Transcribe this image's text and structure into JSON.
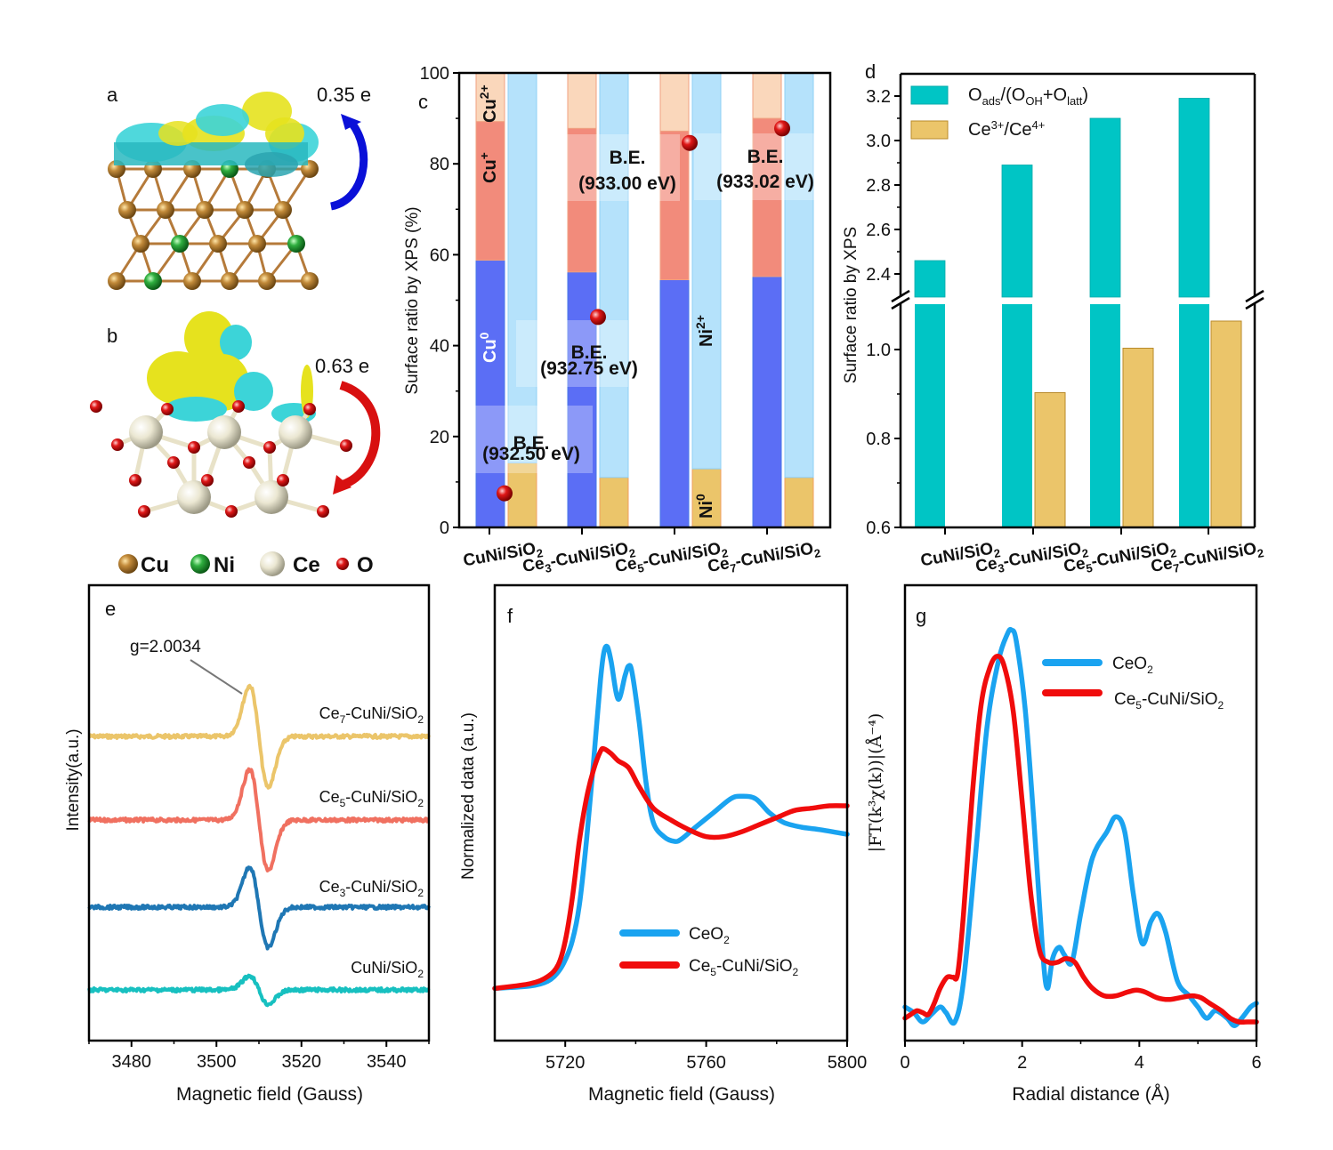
{
  "panels": {
    "a": {
      "label": "a",
      "charge": "0.35 e",
      "arrow_color": "#0a10d8"
    },
    "b": {
      "label": "b",
      "charge": "0.63 e",
      "arrow_color": "#d81010"
    },
    "legend_atoms": [
      {
        "name": "Cu",
        "color": "#b07a2a"
      },
      {
        "name": "Ni",
        "color": "#2aa23a"
      },
      {
        "name": "Ce",
        "color": "#e8e4d0"
      },
      {
        "name": "O",
        "color": "#d81818"
      }
    ]
  },
  "chart_data": [
    {
      "id": "c",
      "panel_label": "c",
      "type": "bar",
      "stacked": true,
      "ylabel": "Surface ratio by XPS (%)",
      "ylim": [
        0,
        100
      ],
      "yticks": [
        "0",
        "20",
        "40",
        "60",
        "80",
        "100"
      ],
      "categories": [
        "CuNi/SiO2",
        "Ce3-CuNi/SiO2",
        "Ce5-CuNi/SiO2",
        "Ce7-CuNi/SiO2"
      ],
      "category_labels": [
        {
          "main": "CuNi/SiO",
          "sub": "2",
          "prefix": "",
          "prefix_sub": ""
        },
        {
          "main": "-CuNi/SiO",
          "sub": "2",
          "prefix": "Ce",
          "prefix_sub": "3"
        },
        {
          "main": "-CuNi/SiO",
          "sub": "2",
          "prefix": "Ce",
          "prefix_sub": "5"
        },
        {
          "main": "-CuNi/SiO",
          "sub": "2",
          "prefix": "Ce",
          "prefix_sub": "7"
        }
      ],
      "cu_series": [
        {
          "name": "Cu0",
          "color": "#5b6ef5",
          "values": [
            58.8,
            56.2,
            54.5,
            55.2
          ]
        },
        {
          "name": "Cu+",
          "color": "#f28b7b",
          "values": [
            30.5,
            31.6,
            32.7,
            34.8
          ]
        },
        {
          "name": "Cu2+",
          "color": "#fad7bb",
          "values": [
            10.7,
            12.2,
            12.8,
            10.0
          ]
        }
      ],
      "ni_series": [
        {
          "name": "Ni0",
          "color": "#ebc56a",
          "values": [
            14.2,
            11.0,
            12.9,
            11.0
          ]
        },
        {
          "name": "Ni2+",
          "color": "#b5e2fb",
          "values": [
            85.8,
            89.0,
            87.1,
            89.0
          ]
        }
      ],
      "be_points": [
        7.5,
        46.3,
        84.6,
        87.8
      ],
      "be_labels": [
        "B.E.",
        "(932.50 eV)",
        "B.E.",
        "(932.75 eV)",
        "B.E.",
        "(933.00 eV)",
        "B.E.",
        "(933.02 eV)"
      ],
      "series_labels": {
        "cu2": "Cu",
        "cu2_sup": "2+",
        "cu1": "Cu",
        "cu1_sup": "+",
        "cu0": "Cu",
        "cu0_sup": "0",
        "ni2": "Ni",
        "ni2_sup": "2+",
        "ni0": "Ni",
        "ni0_sup": "0"
      }
    },
    {
      "id": "d",
      "panel_label": "d",
      "type": "bar",
      "broken_axis": true,
      "ylabel": "Surface ratio by XPS",
      "ylim_lower": [
        0.6,
        1.1
      ],
      "ylim_upper": [
        2.33,
        3.3
      ],
      "yticks_lower": [
        "0.6",
        "0.8",
        "1.0"
      ],
      "yticks_upper": [
        "2.4",
        "2.6",
        "2.8",
        "3.0",
        "3.2"
      ],
      "categories": [
        "CuNi/SiO2",
        "Ce3-CuNi/SiO2",
        "Ce5-CuNi/SiO2",
        "Ce7-CuNi/SiO2"
      ],
      "series": [
        {
          "name": "Oads/(OOH+Olatt)",
          "color": "#00c5c5",
          "values": [
            2.46,
            2.89,
            3.1,
            3.19
          ]
        },
        {
          "name": "Ce3+/Ce4+",
          "color": "#ebc56a",
          "values": [
            null,
            0.903,
            1.003,
            1.064
          ]
        }
      ],
      "legend": [
        {
          "main": "O",
          "parts": [
            [
              "sub",
              "ads"
            ],
            [
              "n",
              "/(O"
            ],
            [
              "sub",
              "OH"
            ],
            [
              "n",
              "+O"
            ],
            [
              "sub",
              "latt"
            ],
            [
              "n",
              ")"
            ]
          ]
        },
        {
          "main": "Ce",
          "parts": [
            [
              "sup",
              "3+"
            ],
            [
              "n",
              "/Ce"
            ],
            [
              "sup",
              "4+"
            ]
          ]
        }
      ],
      "legend_position": "top-left"
    },
    {
      "id": "e",
      "panel_label": "e",
      "type": "line",
      "xlabel": "Magnetic field (Gauss)",
      "ylabel": "Intensity(a.u.)",
      "xlim": [
        3470,
        3550
      ],
      "xticks": [
        "3480",
        "3500",
        "3520",
        "3540"
      ],
      "annotation": "g=2.0034",
      "series": [
        {
          "name": "Ce7-CuNi/SiO2",
          "label": "Ce",
          "sub": "7",
          "rest": "-CuNi/SiO",
          "sub2": "2",
          "color": "#ebc56a",
          "offset": 3.0,
          "amp": 1.25
        },
        {
          "name": "Ce5-CuNi/SiO2",
          "label": "Ce",
          "sub": "5",
          "rest": "-CuNi/SiO",
          "sub2": "2",
          "color": "#f07060",
          "offset": 2.0,
          "amp": 1.25
        },
        {
          "name": "Ce3-CuNi/SiO2",
          "label": "Ce",
          "sub": "3",
          "rest": "-CuNi/SiO",
          "sub2": "2",
          "color": "#1f77b4",
          "offset": 1.0,
          "amp": 1.0
        },
        {
          "name": "CuNi/SiO2",
          "label": "",
          "sub": "",
          "rest": "CuNi/SiO",
          "sub2": "2",
          "color": "#17c0c0",
          "offset": 0.0,
          "amp": 0.35
        }
      ]
    },
    {
      "id": "f",
      "panel_label": "f",
      "type": "line",
      "xlabel": "Magnetic field (Gauss)",
      "ylabel": "Normalized data (a.u.)",
      "xlim": [
        5700,
        5800
      ],
      "xticks": [
        "5720",
        "5760",
        "5800"
      ],
      "legend_position": "bottom-right",
      "series": [
        {
          "name": "CeO2",
          "label": "CeO",
          "sub": "2",
          "color": "#1aa3f0",
          "x": [
            5700,
            5710,
            5715,
            5718,
            5720,
            5722,
            5724,
            5726,
            5728,
            5730,
            5731,
            5732,
            5733,
            5735,
            5737,
            5738,
            5739,
            5741,
            5743,
            5745,
            5748,
            5751,
            5753,
            5757,
            5762,
            5767,
            5770,
            5774,
            5778,
            5782,
            5787,
            5792,
            5800
          ],
          "y": [
            0.0,
            0.01,
            0.03,
            0.07,
            0.12,
            0.2,
            0.35,
            0.62,
            0.95,
            1.3,
            1.42,
            1.44,
            1.38,
            1.22,
            1.32,
            1.36,
            1.33,
            1.12,
            0.86,
            0.7,
            0.64,
            0.62,
            0.63,
            0.68,
            0.74,
            0.8,
            0.81,
            0.8,
            0.74,
            0.7,
            0.68,
            0.67,
            0.65
          ]
        },
        {
          "name": "Ce5-CuNi/SiO2",
          "label": "Ce",
          "sub": "5",
          "rest": "-CuNi/SiO",
          "sub2": "2",
          "color": "#f00c0c",
          "x": [
            5700,
            5710,
            5715,
            5718,
            5720,
            5722,
            5724,
            5726,
            5728,
            5730,
            5731,
            5733,
            5735,
            5738,
            5741,
            5745,
            5750,
            5755,
            5760,
            5765,
            5770,
            5775,
            5780,
            5785,
            5790,
            5795,
            5800
          ],
          "y": [
            0.0,
            0.02,
            0.05,
            0.1,
            0.2,
            0.38,
            0.62,
            0.8,
            0.92,
            1.0,
            1.01,
            0.99,
            0.96,
            0.93,
            0.85,
            0.76,
            0.71,
            0.67,
            0.64,
            0.64,
            0.66,
            0.69,
            0.72,
            0.75,
            0.76,
            0.77,
            0.77
          ]
        }
      ]
    },
    {
      "id": "g",
      "panel_label": "g",
      "type": "line",
      "xlabel": "Radial distance (Å)",
      "ylabel": "|FT(k³χ(k))|(Å⁻⁴)",
      "xlim": [
        0,
        6
      ],
      "xticks": [
        "0",
        "2",
        "4",
        "6"
      ],
      "legend_position": "top-right",
      "series": [
        {
          "name": "CeO2",
          "label": "CeO",
          "sub": "2",
          "color": "#1aa3f0",
          "x": [
            0,
            0.15,
            0.3,
            0.45,
            0.6,
            0.7,
            0.85,
            1.0,
            1.2,
            1.4,
            1.6,
            1.75,
            1.82,
            1.9,
            2.05,
            2.2,
            2.35,
            2.43,
            2.52,
            2.63,
            2.72,
            2.85,
            3.0,
            3.2,
            3.45,
            3.6,
            3.75,
            3.9,
            4.05,
            4.2,
            4.32,
            4.45,
            4.65,
            4.85,
            5.0,
            5.15,
            5.3,
            5.5,
            5.62,
            5.75,
            5.9,
            6.0
          ],
          "y": [
            0.05,
            0.035,
            0.01,
            0.03,
            0.05,
            0.035,
            0.01,
            0.12,
            0.45,
            0.8,
            0.98,
            1.05,
            1.06,
            1.03,
            0.85,
            0.55,
            0.2,
            0.1,
            0.18,
            0.21,
            0.19,
            0.17,
            0.3,
            0.45,
            0.52,
            0.56,
            0.52,
            0.35,
            0.22,
            0.28,
            0.3,
            0.25,
            0.12,
            0.08,
            0.05,
            0.02,
            0.04,
            0.02,
            0.0,
            0.02,
            0.05,
            0.06
          ]
        },
        {
          "name": "Ce5-CuNi/SiO2",
          "label": "Ce",
          "sub": "5",
          "rest": "-CuNi/SiO",
          "sub2": "2",
          "color": "#f00c0c",
          "x": [
            0,
            0.1,
            0.2,
            0.3,
            0.4,
            0.5,
            0.6,
            0.72,
            0.82,
            0.9,
            1.0,
            1.15,
            1.3,
            1.45,
            1.58,
            1.7,
            1.85,
            2.0,
            2.15,
            2.3,
            2.45,
            2.6,
            2.75,
            2.9,
            3.05,
            3.2,
            3.4,
            3.6,
            3.8,
            3.95,
            4.1,
            4.3,
            4.5,
            4.7,
            4.9,
            5.05,
            5.2,
            5.4,
            5.55,
            5.7,
            5.85,
            6.0
          ],
          "y": [
            0.02,
            0.03,
            0.04,
            0.035,
            0.03,
            0.06,
            0.1,
            0.13,
            0.13,
            0.14,
            0.3,
            0.62,
            0.86,
            0.96,
            0.99,
            0.96,
            0.84,
            0.6,
            0.35,
            0.2,
            0.17,
            0.17,
            0.18,
            0.17,
            0.13,
            0.1,
            0.08,
            0.08,
            0.09,
            0.095,
            0.09,
            0.075,
            0.07,
            0.075,
            0.08,
            0.075,
            0.06,
            0.04,
            0.02,
            0.01,
            0.01,
            0.01
          ]
        }
      ]
    }
  ]
}
